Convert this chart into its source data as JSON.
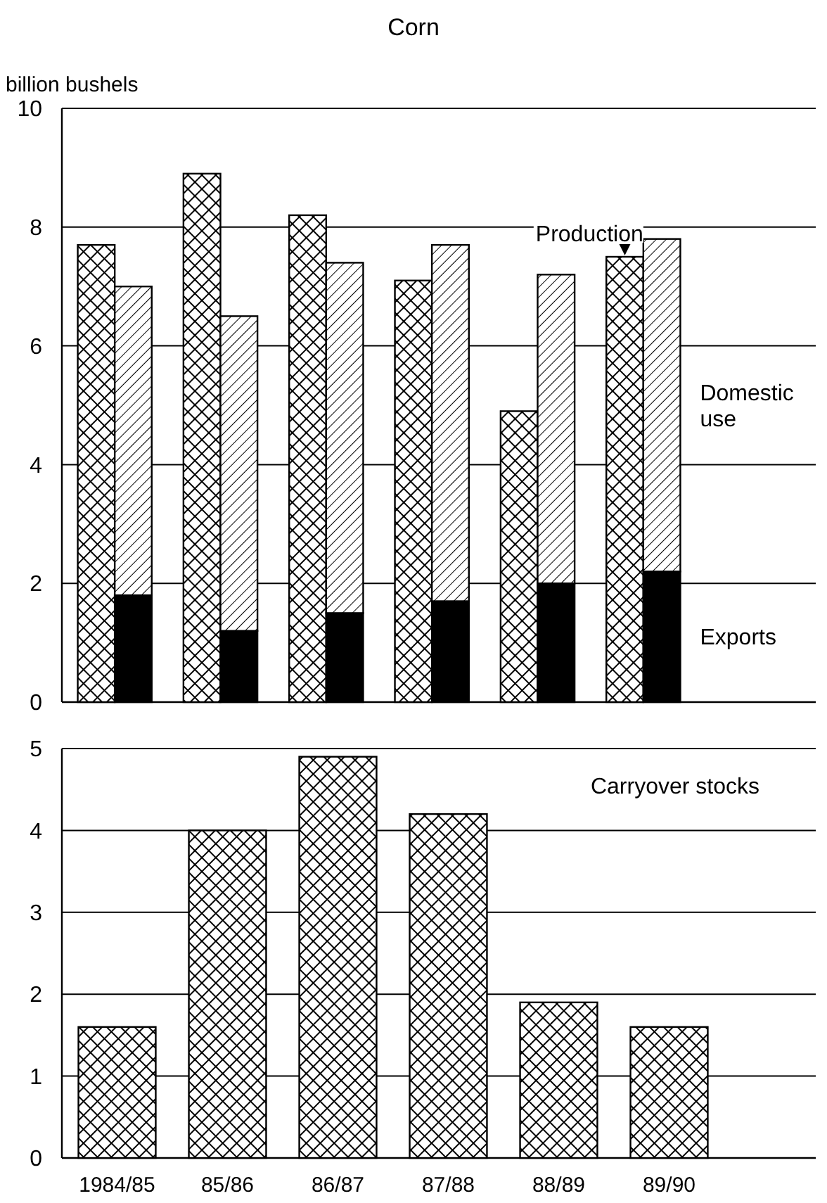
{
  "chart_data": [
    {
      "type": "bar",
      "title": "Corn",
      "ylabel": "billion bushels",
      "categories": [
        null,
        null,
        null,
        null,
        null,
        null,
        null,
        null,
        null,
        null,
        null,
        null
      ],
      "stacked": true,
      "series": [
        {
          "name": "Production",
          "color": "#000000",
          "values": [
            7.7,
            null,
            8.9,
            null,
            8.2,
            null,
            7.1,
            null,
            4.9,
            null,
            7.5,
            null
          ]
        },
        {
          "name": "Exports",
          "color": "#000000",
          "values": [
            null,
            1.8,
            null,
            1.2,
            null,
            1.5,
            null,
            1.7,
            null,
            2.0,
            null,
            2.2
          ]
        },
        {
          "name": "Domestic use",
          "color": "#000000",
          "values": [
            null,
            5.2,
            null,
            5.3,
            null,
            5.9,
            null,
            6.0,
            null,
            5.2,
            null,
            5.6
          ]
        }
      ],
      "ylim": [
        0,
        10
      ],
      "yticks": [
        0,
        2,
        4,
        6,
        8,
        10
      ],
      "grid": "y"
    },
    {
      "type": "bar",
      "categories": [
        "1984/85",
        "85/86",
        "86/87",
        "87/88",
        "88/89",
        "89/90"
      ],
      "series": [
        {
          "name": "Carryover stocks",
          "color": "#000000",
          "values": [
            1.6,
            4.0,
            4.9,
            4.2,
            1.9,
            1.6
          ]
        }
      ],
      "ylim": [
        0,
        5
      ],
      "yticks": [
        0,
        1,
        2,
        3,
        4,
        5
      ],
      "grid": "y"
    }
  ]
}
